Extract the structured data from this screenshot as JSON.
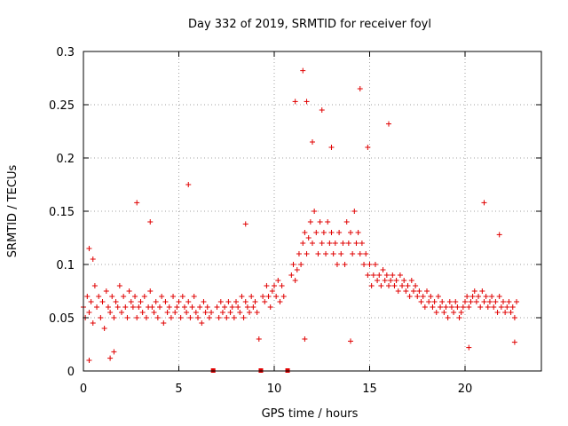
{
  "chart_data": {
    "type": "scatter",
    "title": "Day 332 of 2019, SRMTID for receiver foyl",
    "xlabel": "GPS time / hours",
    "ylabel": "SRMTID / TECUs",
    "xlim": [
      0,
      24
    ],
    "ylim": [
      0,
      0.3
    ],
    "x_ticks": [
      0,
      5,
      10,
      15,
      20
    ],
    "y_ticks": [
      0,
      0.05,
      0.1,
      0.15,
      0.2,
      0.25,
      0.3
    ],
    "x_tick_labels": [
      "0",
      "5",
      "10",
      "15",
      "20"
    ],
    "y_tick_labels": [
      "0",
      "0.05",
      "0.1",
      "0.15",
      "0.2",
      "0.25",
      "0.3"
    ],
    "grid": true,
    "marker": "+",
    "color": "#e00000",
    "series": [
      {
        "name": "SRMTID",
        "x": [
          0.0,
          0.1,
          0.2,
          0.3,
          0.4,
          0.5,
          0.6,
          0.7,
          0.8,
          0.9,
          1.0,
          1.1,
          1.2,
          1.3,
          1.4,
          1.5,
          1.6,
          1.7,
          1.8,
          1.9,
          2.0,
          2.1,
          2.2,
          2.3,
          2.4,
          2.5,
          2.6,
          2.7,
          2.8,
          2.9,
          3.0,
          3.1,
          3.2,
          3.3,
          3.4,
          3.5,
          3.6,
          3.7,
          3.8,
          3.9,
          4.0,
          4.1,
          4.2,
          4.3,
          4.4,
          4.5,
          4.6,
          4.7,
          4.8,
          4.9,
          5.0,
          5.1,
          5.2,
          5.3,
          5.4,
          5.5,
          5.6,
          5.7,
          5.8,
          5.9,
          6.0,
          6.1,
          6.2,
          6.3,
          6.4,
          6.5,
          6.6,
          6.7,
          7.0,
          7.1,
          7.2,
          7.3,
          7.4,
          7.5,
          7.6,
          7.7,
          7.8,
          7.9,
          8.0,
          8.1,
          8.2,
          8.3,
          8.4,
          8.5,
          8.6,
          8.7,
          8.8,
          8.9,
          9.0,
          9.1,
          9.4,
          9.5,
          9.6,
          9.7,
          9.8,
          9.9,
          10.0,
          10.1,
          10.2,
          10.3,
          10.4,
          10.5,
          10.9,
          11.0,
          11.1,
          11.2,
          11.3,
          11.4,
          11.5,
          11.6,
          11.7,
          11.8,
          11.9,
          12.0,
          12.1,
          12.2,
          12.3,
          12.4,
          12.5,
          12.6,
          12.7,
          12.8,
          12.9,
          13.0,
          13.1,
          13.2,
          13.3,
          13.4,
          13.5,
          13.6,
          13.7,
          13.8,
          13.9,
          14.0,
          14.1,
          14.2,
          14.3,
          14.4,
          14.5,
          14.6,
          14.7,
          14.8,
          14.9,
          15.0,
          15.1,
          15.2,
          15.3,
          15.4,
          15.5,
          15.6,
          15.7,
          15.8,
          15.9,
          16.0,
          16.1,
          16.2,
          16.3,
          16.4,
          16.5,
          16.6,
          16.7,
          16.8,
          16.9,
          17.0,
          17.1,
          17.2,
          17.3,
          17.4,
          17.5,
          17.6,
          17.7,
          17.8,
          17.9,
          18.0,
          18.1,
          18.2,
          18.3,
          18.4,
          18.5,
          18.6,
          18.7,
          18.8,
          18.9,
          19.0,
          19.1,
          19.2,
          19.3,
          19.4,
          19.5,
          19.6,
          19.7,
          19.8,
          19.9,
          20.0,
          20.1,
          20.2,
          20.3,
          20.4,
          20.5,
          20.6,
          20.7,
          20.8,
          20.9,
          21.0,
          21.1,
          21.2,
          21.3,
          21.4,
          21.5,
          21.6,
          21.7,
          21.8,
          21.9,
          22.0,
          22.1,
          22.2,
          22.3,
          22.4,
          22.5,
          22.6,
          22.7,
          0.3,
          0.5,
          2.8,
          3.5,
          5.5,
          8.5,
          11.1,
          11.5,
          11.7,
          12.0,
          12.5,
          13.0,
          14.5,
          14.9,
          16.0,
          21.0,
          21.8,
          0.3,
          1.4,
          1.6,
          9.2,
          11.6,
          14.0,
          20.2,
          22.6
        ],
        "y": [
          0.06,
          0.05,
          0.07,
          0.055,
          0.065,
          0.045,
          0.08,
          0.06,
          0.07,
          0.05,
          0.065,
          0.04,
          0.075,
          0.06,
          0.055,
          0.07,
          0.05,
          0.065,
          0.06,
          0.08,
          0.055,
          0.07,
          0.06,
          0.05,
          0.075,
          0.065,
          0.06,
          0.07,
          0.05,
          0.06,
          0.065,
          0.055,
          0.07,
          0.05,
          0.06,
          0.075,
          0.06,
          0.055,
          0.065,
          0.05,
          0.06,
          0.07,
          0.045,
          0.065,
          0.055,
          0.06,
          0.05,
          0.07,
          0.055,
          0.06,
          0.065,
          0.05,
          0.07,
          0.06,
          0.055,
          0.065,
          0.05,
          0.06,
          0.07,
          0.055,
          0.05,
          0.06,
          0.045,
          0.065,
          0.055,
          0.06,
          0.05,
          0.055,
          0.06,
          0.05,
          0.065,
          0.055,
          0.06,
          0.05,
          0.065,
          0.055,
          0.06,
          0.05,
          0.065,
          0.06,
          0.055,
          0.07,
          0.05,
          0.065,
          0.06,
          0.055,
          0.07,
          0.06,
          0.065,
          0.055,
          0.07,
          0.065,
          0.08,
          0.07,
          0.06,
          0.075,
          0.08,
          0.07,
          0.085,
          0.065,
          0.08,
          0.07,
          0.09,
          0.1,
          0.085,
          0.095,
          0.11,
          0.1,
          0.12,
          0.13,
          0.11,
          0.125,
          0.14,
          0.12,
          0.15,
          0.13,
          0.11,
          0.14,
          0.12,
          0.13,
          0.11,
          0.14,
          0.12,
          0.13,
          0.11,
          0.12,
          0.1,
          0.13,
          0.11,
          0.12,
          0.1,
          0.14,
          0.12,
          0.13,
          0.11,
          0.15,
          0.12,
          0.13,
          0.11,
          0.12,
          0.1,
          0.11,
          0.09,
          0.1,
          0.08,
          0.09,
          0.1,
          0.085,
          0.09,
          0.08,
          0.095,
          0.085,
          0.09,
          0.08,
          0.085,
          0.09,
          0.08,
          0.085,
          0.075,
          0.09,
          0.08,
          0.085,
          0.075,
          0.08,
          0.07,
          0.085,
          0.075,
          0.08,
          0.07,
          0.075,
          0.065,
          0.07,
          0.06,
          0.075,
          0.065,
          0.07,
          0.06,
          0.065,
          0.055,
          0.07,
          0.06,
          0.065,
          0.055,
          0.06,
          0.05,
          0.065,
          0.06,
          0.055,
          0.065,
          0.06,
          0.05,
          0.055,
          0.06,
          0.065,
          0.07,
          0.06,
          0.065,
          0.07,
          0.075,
          0.065,
          0.07,
          0.06,
          0.075,
          0.065,
          0.07,
          0.06,
          0.065,
          0.07,
          0.06,
          0.065,
          0.055,
          0.07,
          0.06,
          0.065,
          0.055,
          0.06,
          0.065,
          0.055,
          0.06,
          0.05,
          0.065,
          0.115,
          0.105,
          0.158,
          0.14,
          0.175,
          0.138,
          0.253,
          0.282,
          0.253,
          0.215,
          0.245,
          0.21,
          0.265,
          0.21,
          0.232,
          0.158,
          0.128,
          0.01,
          0.012,
          0.018,
          0.03,
          0.03,
          0.028,
          0.022,
          0.027
        ]
      }
    ],
    "data_gaps_hours": [
      6.8,
      9.3,
      10.7
    ]
  }
}
